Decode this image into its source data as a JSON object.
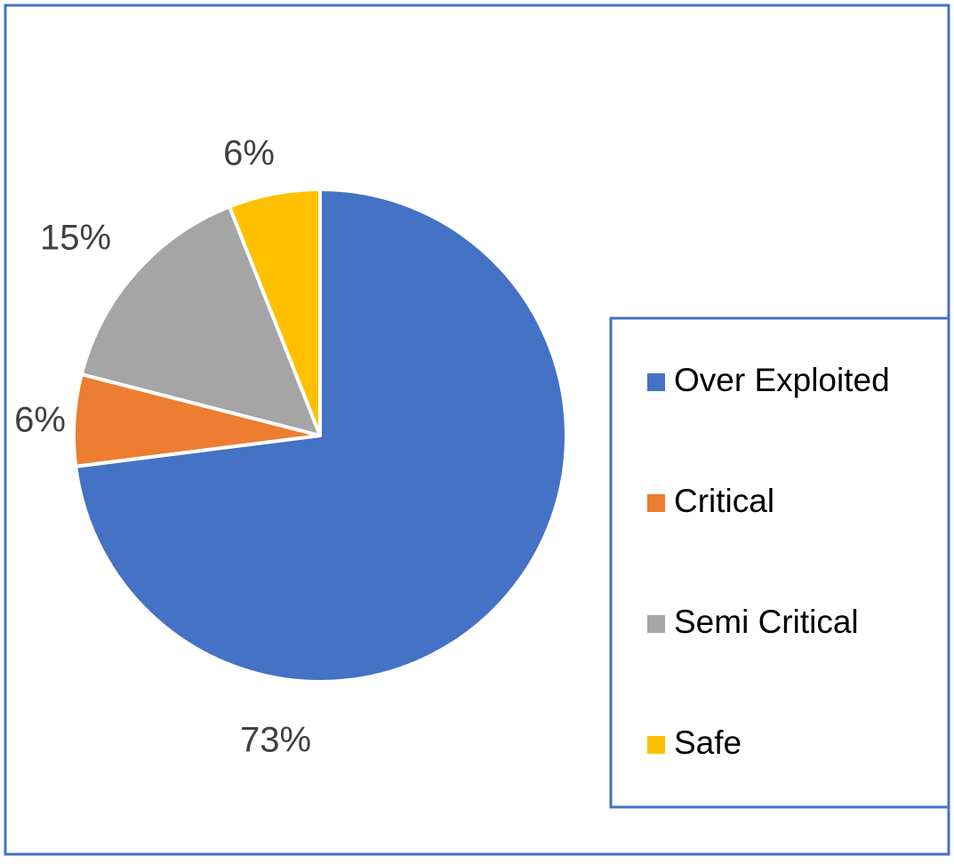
{
  "chart_data": {
    "type": "pie",
    "categories": [
      "Over Exploited",
      "Critical",
      "Semi Critical",
      "Safe"
    ],
    "values": [
      73,
      6,
      15,
      6
    ],
    "value_labels": [
      "73%",
      "6%",
      "15%",
      "6%"
    ],
    "colors": [
      "#4472c4",
      "#ed7d31",
      "#a5a5a5",
      "#ffc000"
    ],
    "legend": "right"
  }
}
